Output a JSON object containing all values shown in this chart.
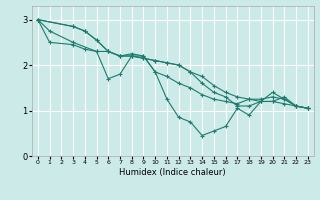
{
  "xlabel": "Humidex (Indice chaleur)",
  "bg_color": "#cceae7",
  "grid_color": "#ffffff",
  "line_color": "#1e7b6e",
  "xlim": [
    -0.5,
    23.5
  ],
  "ylim": [
    0,
    3.3
  ],
  "xticks": [
    0,
    1,
    2,
    3,
    4,
    5,
    6,
    7,
    8,
    9,
    10,
    11,
    12,
    13,
    14,
    15,
    16,
    17,
    18,
    19,
    20,
    21,
    22,
    23
  ],
  "yticks": [
    0,
    1,
    2,
    3
  ],
  "series": [
    {
      "x": [
        0,
        1,
        3,
        5,
        6,
        7,
        8,
        9,
        10,
        11,
        12,
        13,
        14,
        15,
        16,
        17,
        18,
        19,
        20,
        21,
        22,
        23
      ],
      "y": [
        3.0,
        2.75,
        2.5,
        2.3,
        1.7,
        1.8,
        2.2,
        2.2,
        1.85,
        1.25,
        0.85,
        0.75,
        0.45,
        0.55,
        0.65,
        1.05,
        0.9,
        1.2,
        1.4,
        1.25,
        1.1,
        1.05
      ]
    },
    {
      "x": [
        0,
        1,
        3,
        4,
        5,
        6,
        7,
        8,
        9,
        10,
        11,
        12,
        13,
        14,
        15,
        16,
        17,
        18,
        19,
        20,
        21,
        22,
        23
      ],
      "y": [
        3.0,
        2.5,
        2.45,
        2.35,
        2.3,
        2.3,
        2.2,
        2.25,
        2.2,
        1.85,
        1.75,
        1.6,
        1.5,
        1.35,
        1.25,
        1.2,
        1.15,
        1.25,
        1.25,
        1.3,
        1.25,
        1.1,
        1.05
      ]
    },
    {
      "x": [
        0,
        3,
        4,
        5,
        6,
        7,
        8,
        9,
        10,
        11,
        12,
        13,
        14,
        15,
        16,
        17,
        18,
        19,
        20,
        21,
        22,
        23
      ],
      "y": [
        3.0,
        2.85,
        2.75,
        2.55,
        2.3,
        2.2,
        2.2,
        2.15,
        2.1,
        2.05,
        2.0,
        1.85,
        1.75,
        1.55,
        1.4,
        1.3,
        1.25,
        1.2,
        1.2,
        1.15,
        1.1,
        1.05
      ]
    },
    {
      "x": [
        0,
        3,
        4,
        5,
        6,
        7,
        8,
        9,
        10,
        11,
        12,
        13,
        14,
        15,
        16,
        17,
        18,
        19,
        20,
        21,
        22,
        23
      ],
      "y": [
        3.0,
        2.85,
        2.75,
        2.55,
        2.3,
        2.2,
        2.2,
        2.15,
        2.1,
        2.05,
        2.0,
        1.85,
        1.6,
        1.4,
        1.3,
        1.1,
        1.1,
        1.2,
        1.2,
        1.3,
        1.1,
        1.05
      ]
    }
  ]
}
